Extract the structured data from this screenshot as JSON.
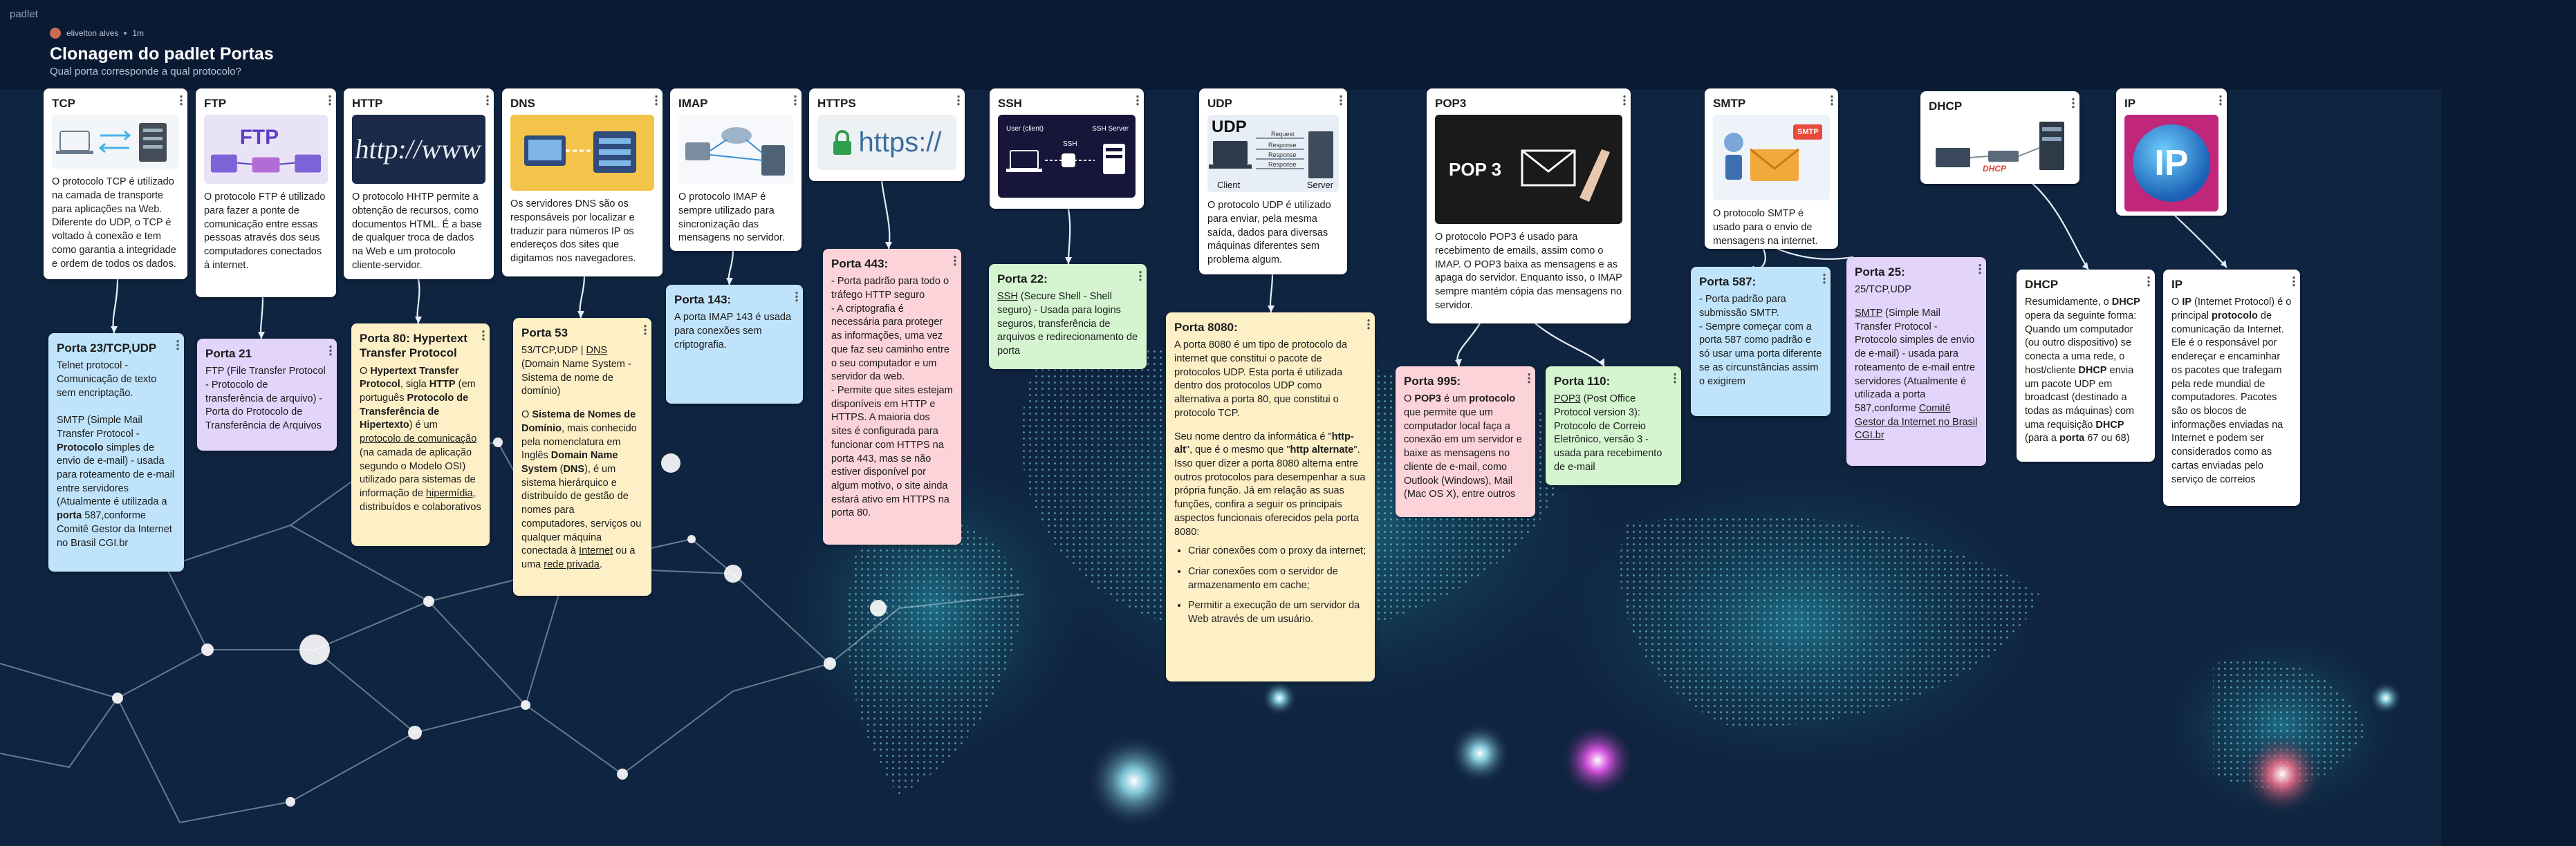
{
  "app": {
    "brand": "padlet"
  },
  "board": {
    "author": "elivelton alves",
    "time": "1m",
    "title": "Clonagem do padlet Portas",
    "subtitle": "Qual porta corresponde a qual protocolo?"
  },
  "colors": {
    "background": "#0b1a33",
    "white": "#ffffff",
    "blue": "#bfe3fb",
    "purple": "#e3d4fb",
    "yellow": "#fdefc6",
    "pink": "#fbd3d8",
    "green": "#d4f5d0"
  },
  "top_cards": [
    {
      "id": "tcp",
      "title": "TCP",
      "image": "network-diagram-image",
      "text": "O protocolo TCP é utilizado na camada de transporte para aplicações na Web. Diferente do UDP, o TCP é voltado à conexão e tem como garantia a integridade e ordem de todos os dados."
    },
    {
      "id": "ftp",
      "title": "FTP",
      "image": "ftp-illustration-image",
      "text": "O protocolo FTP é utilizado para fazer a ponte de comunicação entre essas pessoas através dos seus computadores conectados à internet."
    },
    {
      "id": "http",
      "title": "HTTP",
      "image_text": "http://www",
      "text": "O protocolo HHTP permite a obtenção de recursos, como documentos HTML. É a base de qualquer troca de dados na Web e um protocolo cliente-servidor."
    },
    {
      "id": "dns",
      "title": "DNS",
      "image": "dns-illustration-image",
      "text": "Os servidores DNS são os responsáveis por localizar e traduzir para números IP os endereços dos sites que digitamos nos navegadores."
    },
    {
      "id": "imap",
      "title": "IMAP",
      "image": "imap-diagram-image",
      "text": "O protocolo IMAP é sempre utilizado para sincronização das mensagens no servidor."
    },
    {
      "id": "https",
      "title": "HTTPS",
      "image_text": "https://",
      "text": ""
    },
    {
      "id": "ssh",
      "title": "SSH",
      "image": "ssh-diagram-image",
      "image_labels": [
        "User (client)",
        "SSH",
        "SSH Server"
      ],
      "text": ""
    },
    {
      "id": "udp",
      "title": "UDP",
      "image_text": "UDP",
      "image_labels": [
        "Request",
        "Response",
        "Response",
        "Response",
        "Client",
        "Server"
      ],
      "text": "O protocolo UDP é utilizado para enviar, pela mesma saída, dados para diversas máquinas diferentes sem problema algum."
    },
    {
      "id": "pop3",
      "title": "POP3",
      "image_text": "POP 3",
      "text": "O protocolo POP3 é usado para recebimento de emails, assim como o IMAP. O POP3 baixa as mensagens e as apaga do servidor. Enquanto isso, o IMAP sempre mantém cópia das mensagens no servidor."
    },
    {
      "id": "smtp",
      "title": "SMTP",
      "image_text": "SMTP",
      "text": "O protocolo SMTP é usado para o envio de mensagens na internet."
    },
    {
      "id": "dhcp",
      "title": "DHCP",
      "image_text": "DHCP",
      "text": ""
    },
    {
      "id": "ip",
      "title": "IP",
      "image_text": "IP",
      "text": ""
    }
  ],
  "bottom_cards": {
    "tcp": {
      "title": "Porta 23/TCP,UDP",
      "text": "Telnet protocol - Comunicação de texto sem encriptação.\n\nSMTP (Simple Mail Transfer Protocol - ",
      "bold": "Protocolo",
      "text2": " simples de envio de e-mail) - usada para roteamento de e-mail entre servidores (Atualmente é utilizada a ",
      "bold2": "porta",
      "text3": " 587,conforme Comitê Gestor da Internet no Brasil CGI.br"
    },
    "ftp": {
      "title": "Porta 21",
      "text": "FTP (File Transfer Protocol - Protocolo de transferência de arquivo) - Porta do Protocolo de Transferência de Arquivos"
    },
    "http": {
      "title": "Porta 80: Hypertext Transfer Protocol",
      "p1": "O ",
      "b1": "Hypertext Transfer Protocol",
      "p2": ", sigla ",
      "b2": "HTTP",
      "p3": " (em português ",
      "b3": "Protocolo de Transferência de Hipertexto",
      "p4": ") é um ",
      "u1": "protocolo de comunicação",
      "p5": " (na camada de aplicação segundo o Modelo OSI) utilizado para sistemas de informação de ",
      "u2": "hipermídia",
      "p6": ", distribuídos e colaborativos"
    },
    "dns": {
      "title": "Porta 53",
      "p1": "53/TCP,UDP | ",
      "u1": "DNS",
      "p2": " (Domain Name System - Sistema de nome de domínio)",
      "p3": "O ",
      "b1": "Sistema de Nomes de Domínio",
      "p4": ", mais conhecido pela nomenclatura em Inglês ",
      "b2": "Domain Name System",
      "p5": " (",
      "b3": "DNS",
      "p6": "), é um sistema hierárquico e distribuído de gestão de nomes para computadores, serviços ou qualquer máquina conectada à ",
      "u2": "Internet",
      "p7": " ou a uma ",
      "u3": "rede privada",
      "p8": "."
    },
    "imap": {
      "title": "Porta 143:",
      "text": "A porta IMAP 143 é usada para conexões sem criptografia."
    },
    "https": {
      "title": "Porta 443:",
      "text": "- Porta padrão para todo o tráfego HTTP seguro\n- A criptografia é necessária para proteger as informações, uma vez que faz seu caminho entre o seu computador e um servidor da web.\n- Permite que sites estejam disponíveis em HTTP e HTTPS. A maioria dos sites é configurada para funcionar com HTTPS na porta 443, mas se não estiver disponível por algum motivo, o site ainda estará ativo em HTTPS na porta 80."
    },
    "ssh": {
      "title": "Porta 22:",
      "u1": "SSH",
      "text": " (Secure Shell - Shell seguro) - Usada para logins seguros, transferência de arquivos e redirecionamento de porta"
    },
    "udp": {
      "title": "Porta 8080:",
      "text": "A porta 8080 é um tipo de protocolo da internet que constitui o pacote de protocolos UDP. Esta porta é utilizada dentro dos protocolos UDP como alternativa a porta 80, que constitui o protocolo TCP.",
      "p2a": "Seu nome dentro da informática é \"",
      "b1": "http-alt",
      "p2b": "\", que é o mesmo que \"",
      "b2": "http alternate",
      "p2c": "\". Isso quer dizer a porta 8080 alterna entre outros protocolos para desempenhar a sua própria função. Já em relação as suas funções, confira a seguir os principais aspectos funcionais oferecidos pela porta 8080:",
      "bullets": [
        "Criar conexões com o proxy da internet;",
        "Criar conexões com o servidor de armazenamento em cache;",
        "Permitir a execução de um servidor da Web através de um usuário."
      ]
    },
    "pop995": {
      "title": "Porta 995:",
      "p1": "O ",
      "b1": "POP3",
      "p2": " é um ",
      "b2": "protocolo",
      "p3": " que permite que um computador local faça a conexão em um servidor e baixe as mensagens no cliente de e-mail, como Outlook (Windows), Mail (Mac OS X), entre outros"
    },
    "pop110": {
      "title": "Porta 110:",
      "u1": "POP3",
      "text": " (Post Office Protocol version 3): Protocolo de Correio Eletrônico, versão 3 - usada para recebimento de e-mail"
    },
    "smtp587": {
      "title": "Porta 587:",
      "text": "- Porta padrão para submissão SMTP.\n- Sempre começar com a porta 587 como padrão e só usar uma porta diferente se as circunstâncias assim o exigirem"
    },
    "smtp25": {
      "title": "Porta 25:",
      "sub": "25/TCP,UDP",
      "u1": "SMTP",
      "text": " (Simple Mail Transfer Protocol - Protocolo simples de envio de e-mail) - usada para roteamento de e-mail entre servidores (Atualmente é utilizada a porta 587,conforme ",
      "u2": "Comitê Gestor da Internet no Brasil CGI.br"
    },
    "dhcp": {
      "title": "DHCP",
      "p1": "Resumidamente, o ",
      "b1": "DHCP",
      "p2": " opera da seguinte forma: Quando um computador (ou outro dispositivo) se conecta a uma rede, o host/cliente ",
      "b2": "DHCP",
      "p3": " envia um pacote UDP em broadcast (destinado a todas as máquinas) com uma requisição ",
      "b3": "DHCP",
      "p4": " (para a ",
      "b4": "porta",
      "p5": " 67 ou 68)"
    },
    "ip": {
      "title": "IP",
      "p1": "O ",
      "b1": "IP",
      "p2": " (Internet Protocol) é o principal ",
      "b2": "protocolo",
      "p3": " de comunicação da Internet. Ele é o responsável por endereçar e encaminhar os pacotes que trafegam pela rede mundial de computadores. Pacotes são os blocos de informações enviadas na Internet e podem ser considerados como as cartas enviadas pelo serviço de correios"
    }
  }
}
